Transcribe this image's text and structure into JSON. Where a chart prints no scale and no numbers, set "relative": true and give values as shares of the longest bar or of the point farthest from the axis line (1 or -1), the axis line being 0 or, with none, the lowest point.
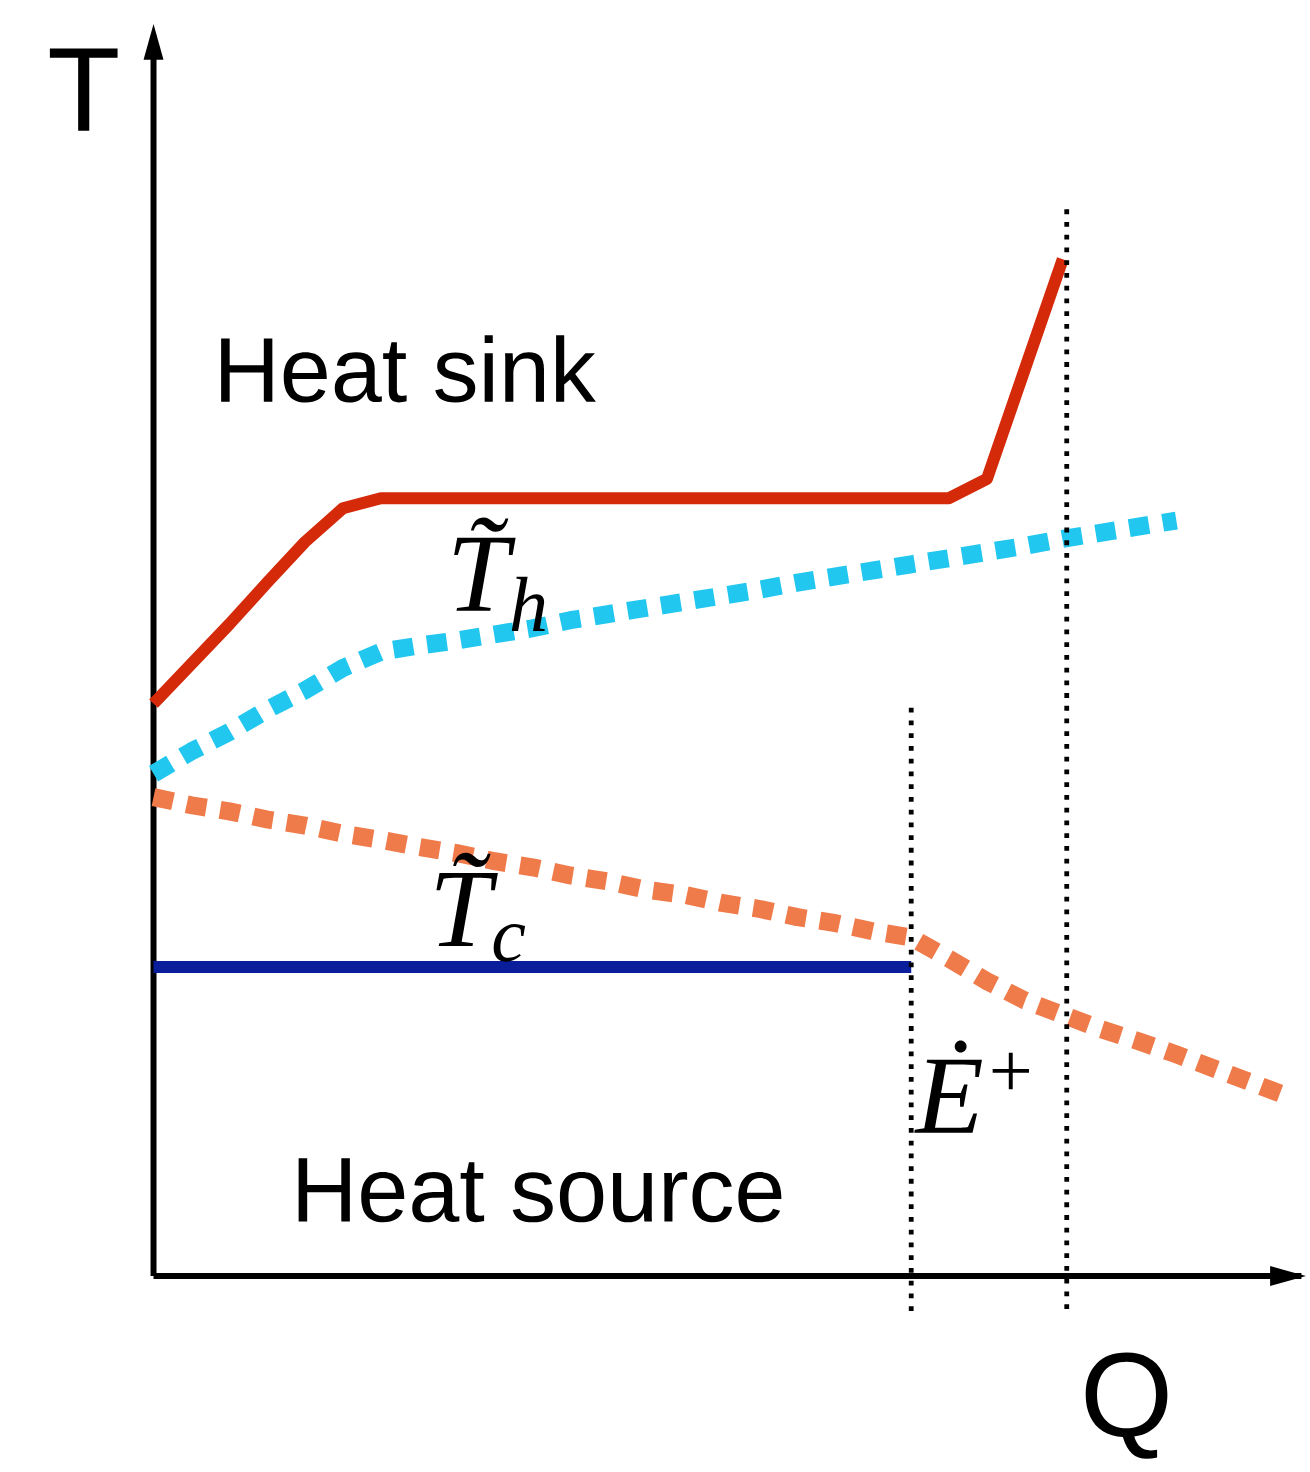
{
  "chart_data": {
    "type": "line",
    "relative": true,
    "xlabel": "Q",
    "ylabel": "T",
    "categories": [
      null,
      null,
      null,
      null,
      null,
      null,
      null,
      null,
      null,
      null,
      null,
      null,
      null,
      null,
      null,
      null,
      null,
      null,
      null,
      null,
      null,
      null,
      null,
      null,
      null,
      null,
      null,
      null,
      null,
      null,
      null
    ],
    "series": [
      {
        "color": "#d42a0a",
        "line_style": "solid",
        "values": [
          0.563,
          0.602,
          0.641,
          0.682,
          0.722,
          0.755,
          0.765,
          0.765,
          0.765,
          0.765,
          0.765,
          0.765,
          0.765,
          0.765,
          0.765,
          0.765,
          0.765,
          0.765,
          0.765,
          0.765,
          0.765,
          0.765,
          0.784,
          0.892,
          1,
          null,
          null,
          null,
          null,
          null,
          null
        ]
      },
      {
        "color": "#22c7f0",
        "line_style": "dotted",
        "values": [
          0.494,
          0.516,
          0.535,
          0.557,
          0.576,
          0.598,
          0.614,
          0.62,
          0.625,
          0.631,
          0.637,
          0.645,
          0.651,
          0.657,
          0.663,
          0.669,
          0.675,
          0.682,
          0.688,
          0.694,
          0.7,
          0.706,
          0.712,
          0.718,
          0.725,
          0.731,
          0.737,
          0.743,
          null,
          null,
          null
        ]
      },
      {
        "color": "#f07b4a",
        "line_style": "dotted",
        "values": [
          0.471,
          0.463,
          0.457,
          0.449,
          0.443,
          0.435,
          0.429,
          0.422,
          0.416,
          0.408,
          0.402,
          0.394,
          0.388,
          0.38,
          0.375,
          0.367,
          0.361,
          0.353,
          0.347,
          0.339,
          0.333,
          0.312,
          0.29,
          0.271,
          0.257,
          0.243,
          0.231,
          0.218,
          0.204,
          0.19,
          0.176
        ]
      },
      {
        "color": "#0a1e9c",
        "line_style": "solid",
        "values": [
          0.304,
          0.304,
          0.304,
          0.304,
          0.304,
          0.304,
          0.304,
          0.304,
          0.304,
          0.304,
          0.304,
          0.304,
          0.304,
          0.304,
          0.304,
          0.304,
          0.304,
          0.304,
          0.304,
          0.304,
          0.304,
          null,
          null,
          null,
          null,
          null,
          null,
          null,
          null,
          null,
          null
        ]
      }
    ],
    "annotations": [
      "Heat sink",
      "T̃$_{h}$",
      "T̃$_{c}$",
      "Ė$^{+}$",
      "Heat source"
    ],
    "marker": "none"
  }
}
